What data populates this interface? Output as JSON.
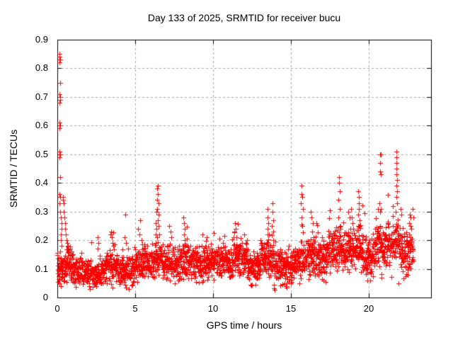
{
  "page": {
    "background": "#ffffff",
    "title": "Day 133 of 2025, SRMTID for receiver bucu"
  },
  "chart_data": {
    "type": "scatter",
    "title": "Day 133 of 2025, SRMTID for receiver bucu",
    "xlabel": "GPS time / hours",
    "ylabel": "SRMTID / TECUs",
    "xlim": [
      0,
      24
    ],
    "ylim": [
      0,
      0.9
    ],
    "xticks": [
      {
        "v": 0,
        "label": "0"
      },
      {
        "v": 5,
        "label": "5"
      },
      {
        "v": 10,
        "label": "10"
      },
      {
        "v": 15,
        "label": "15"
      },
      {
        "v": 20,
        "label": "20"
      }
    ],
    "yticks": [
      {
        "v": 0.0,
        "label": "0"
      },
      {
        "v": 0.1,
        "label": "0.1"
      },
      {
        "v": 0.2,
        "label": "0.2"
      },
      {
        "v": 0.3,
        "label": "0.3"
      },
      {
        "v": 0.4,
        "label": "0.4"
      },
      {
        "v": 0.5,
        "label": "0.5"
      },
      {
        "v": 0.6,
        "label": "0.6"
      },
      {
        "v": 0.7,
        "label": "0.7"
      },
      {
        "v": 0.8,
        "label": "0.8"
      },
      {
        "v": 0.9,
        "label": "0.9"
      }
    ],
    "grid": true,
    "grid_color": "#a8a8a8",
    "border_color": "#000000",
    "marker": {
      "symbol": "plus",
      "color": "#ff0000",
      "size": 7
    },
    "series_name": "SRMTID",
    "data_x_start": 0.02,
    "data_x_end": 22.85,
    "notable_points": [
      [
        0.12,
        0.85
      ],
      [
        0.15,
        0.84
      ],
      [
        0.17,
        0.83
      ],
      [
        0.14,
        0.82
      ],
      [
        0.16,
        0.75
      ],
      [
        0.13,
        0.71
      ],
      [
        0.16,
        0.7
      ],
      [
        0.18,
        0.69
      ],
      [
        0.14,
        0.68
      ],
      [
        0.15,
        0.61
      ],
      [
        0.17,
        0.6
      ],
      [
        0.13,
        0.59
      ],
      [
        0.15,
        0.51
      ],
      [
        0.17,
        0.5
      ],
      [
        0.14,
        0.49
      ],
      [
        0.16,
        0.42
      ],
      [
        0.15,
        0.36
      ],
      [
        0.18,
        0.35
      ],
      [
        0.13,
        0.33
      ],
      [
        0.2,
        0.3
      ],
      [
        0.22,
        0.28
      ],
      [
        0.25,
        0.26
      ],
      [
        0.28,
        0.24
      ],
      [
        0.21,
        0.22
      ],
      [
        0.24,
        0.2
      ],
      [
        0.27,
        0.18
      ],
      [
        0.19,
        0.16
      ],
      [
        0.35,
        0.35
      ],
      [
        0.38,
        0.34
      ],
      [
        0.42,
        0.33
      ],
      [
        0.4,
        0.3
      ],
      [
        0.45,
        0.28
      ],
      [
        0.5,
        0.26
      ],
      [
        0.48,
        0.24
      ],
      [
        0.55,
        0.22
      ],
      [
        0.6,
        0.2
      ],
      [
        0.65,
        0.19
      ],
      [
        0.7,
        0.18
      ],
      [
        0.8,
        0.17
      ],
      [
        0.9,
        0.16
      ],
      [
        1.0,
        0.15
      ],
      [
        2.1,
        0.03
      ],
      [
        2.5,
        0.04
      ],
      [
        2.58,
        0.17
      ],
      [
        2.6,
        0.21
      ],
      [
        2.62,
        0.19
      ],
      [
        3.4,
        0.22
      ],
      [
        3.45,
        0.23
      ],
      [
        3.5,
        0.21
      ],
      [
        3.55,
        0.19
      ],
      [
        3.6,
        0.18
      ],
      [
        4.3,
        0.21
      ],
      [
        4.35,
        0.29
      ],
      [
        4.4,
        0.19
      ],
      [
        5.2,
        0.24
      ],
      [
        5.25,
        0.22
      ],
      [
        5.3,
        0.27
      ],
      [
        5.4,
        0.2
      ],
      [
        6.3,
        0.22
      ],
      [
        6.33,
        0.26
      ],
      [
        6.36,
        0.3
      ],
      [
        6.37,
        0.24
      ],
      [
        6.39,
        0.34
      ],
      [
        6.41,
        0.31
      ],
      [
        6.42,
        0.38
      ],
      [
        6.44,
        0.39
      ],
      [
        6.45,
        0.27
      ],
      [
        6.46,
        0.36
      ],
      [
        6.48,
        0.33
      ],
      [
        6.5,
        0.29
      ],
      [
        6.52,
        0.25
      ],
      [
        6.55,
        0.22
      ],
      [
        7.2,
        0.25
      ],
      [
        7.25,
        0.23
      ],
      [
        7.3,
        0.21
      ],
      [
        8.1,
        0.28
      ],
      [
        8.12,
        0.22
      ],
      [
        8.15,
        0.26
      ],
      [
        8.18,
        0.2
      ],
      [
        8.2,
        0.24
      ],
      [
        9.3,
        0.22
      ],
      [
        9.6,
        0.21
      ],
      [
        11.35,
        0.23
      ],
      [
        11.4,
        0.26
      ],
      [
        11.45,
        0.24
      ],
      [
        11.5,
        0.21
      ],
      [
        12.0,
        0.22
      ],
      [
        13.48,
        0.24
      ],
      [
        13.5,
        0.31
      ],
      [
        13.52,
        0.28
      ],
      [
        13.55,
        0.26
      ],
      [
        13.58,
        0.22
      ],
      [
        13.78,
        0.25
      ],
      [
        13.8,
        0.33
      ],
      [
        13.82,
        0.3
      ],
      [
        13.85,
        0.27
      ],
      [
        13.88,
        0.23
      ],
      [
        14.7,
        0.04
      ],
      [
        15.0,
        0.05
      ],
      [
        15.65,
        0.33
      ],
      [
        15.67,
        0.28
      ],
      [
        15.68,
        0.36
      ],
      [
        15.7,
        0.39
      ],
      [
        15.72,
        0.35
      ],
      [
        15.73,
        0.25
      ],
      [
        15.75,
        0.31
      ],
      [
        16.25,
        0.3
      ],
      [
        16.3,
        0.28
      ],
      [
        16.35,
        0.23
      ],
      [
        16.4,
        0.26
      ],
      [
        16.45,
        0.21
      ],
      [
        18.04,
        0.28
      ],
      [
        18.06,
        0.34
      ],
      [
        18.08,
        0.42
      ],
      [
        18.1,
        0.4
      ],
      [
        18.12,
        0.37
      ],
      [
        18.14,
        0.31
      ],
      [
        18.16,
        0.25
      ],
      [
        18.7,
        0.3
      ],
      [
        18.75,
        0.28
      ],
      [
        18.8,
        0.24
      ],
      [
        18.85,
        0.31
      ],
      [
        18.9,
        0.28
      ],
      [
        18.95,
        0.26
      ],
      [
        19.3,
        0.25
      ],
      [
        19.32,
        0.37
      ],
      [
        19.33,
        0.29
      ],
      [
        19.35,
        0.35
      ],
      [
        19.36,
        0.31
      ],
      [
        19.38,
        0.33
      ],
      [
        19.4,
        0.27
      ],
      [
        19.9,
        0.06
      ],
      [
        20.7,
        0.33
      ],
      [
        20.72,
        0.5
      ],
      [
        20.73,
        0.44
      ],
      [
        20.74,
        0.47
      ],
      [
        20.75,
        0.5
      ],
      [
        20.76,
        0.43
      ],
      [
        20.78,
        0.31
      ],
      [
        20.74,
        0.3
      ],
      [
        21.74,
        0.3
      ],
      [
        21.75,
        0.35
      ],
      [
        21.76,
        0.51
      ],
      [
        21.76,
        0.39
      ],
      [
        21.77,
        0.47
      ],
      [
        21.78,
        0.49
      ],
      [
        21.78,
        0.43
      ],
      [
        21.79,
        0.45
      ],
      [
        21.8,
        0.41
      ],
      [
        21.81,
        0.37
      ],
      [
        21.82,
        0.33
      ],
      [
        21.9,
        0.05
      ],
      [
        22.05,
        0.31
      ],
      [
        22.1,
        0.29
      ],
      [
        22.58,
        0.26
      ],
      [
        22.62,
        0.29
      ],
      [
        22.66,
        0.28
      ],
      [
        22.7,
        0.25
      ],
      [
        22.82,
        0.31
      ],
      [
        22.85,
        0.28
      ]
    ],
    "baseline_segments": [
      [
        0.0,
        0.35,
        0.1,
        0.05
      ],
      [
        0.35,
        1.0,
        0.11,
        0.05
      ],
      [
        1.0,
        2.0,
        0.09,
        0.04
      ],
      [
        2.0,
        3.0,
        0.085,
        0.045
      ],
      [
        3.0,
        4.0,
        0.11,
        0.05
      ],
      [
        4.0,
        5.0,
        0.1,
        0.05
      ],
      [
        5.0,
        6.3,
        0.12,
        0.05
      ],
      [
        6.3,
        6.6,
        0.14,
        0.06
      ],
      [
        6.6,
        7.5,
        0.125,
        0.05
      ],
      [
        7.5,
        8.5,
        0.13,
        0.055
      ],
      [
        8.5,
        9.5,
        0.12,
        0.05
      ],
      [
        9.5,
        11.0,
        0.13,
        0.05
      ],
      [
        11.0,
        12.2,
        0.14,
        0.055
      ],
      [
        12.2,
        13.0,
        0.1,
        0.05
      ],
      [
        13.0,
        13.9,
        0.14,
        0.06
      ],
      [
        13.9,
        15.3,
        0.11,
        0.055
      ],
      [
        15.3,
        16.0,
        0.13,
        0.06
      ],
      [
        16.0,
        17.3,
        0.14,
        0.06
      ],
      [
        17.3,
        18.3,
        0.17,
        0.065
      ],
      [
        18.3,
        19.6,
        0.17,
        0.065
      ],
      [
        19.6,
        20.4,
        0.145,
        0.065
      ],
      [
        20.4,
        21.2,
        0.18,
        0.07
      ],
      [
        21.2,
        22.0,
        0.19,
        0.075
      ],
      [
        22.0,
        22.85,
        0.16,
        0.065
      ]
    ],
    "synthesis": {
      "note": "Baseline scatter band reconstructed from segment envelopes [x0,x1,mean,spread] read off the plot; notable_points are individually visible markers/spikes.",
      "seed": 133,
      "points_per_hour": 110
    }
  }
}
